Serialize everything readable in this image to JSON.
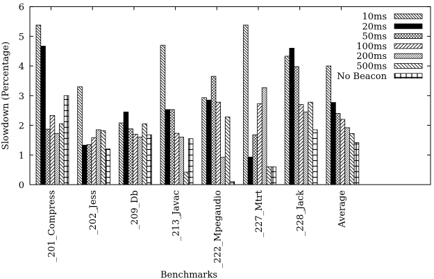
{
  "chart_data": {
    "type": "bar",
    "title": "",
    "xlabel": "Benchmarks",
    "ylabel": "Slowdown (Percentage)",
    "ylim": [
      0,
      6
    ],
    "yticks": [
      "0",
      "1",
      "2",
      "3",
      "4",
      "5",
      "6"
    ],
    "grid": false,
    "legend_position": "top-right",
    "categories": [
      "_201_Compress",
      "_202_Jess",
      "_209_Db",
      "_213_Javac",
      "_222_Mpegaudio",
      "_227_Mtrt",
      "_228_Jack",
      "Average"
    ],
    "series": [
      {
        "name": "10ms",
        "pattern": "diag-dense-down",
        "values": [
          5.38,
          3.3,
          2.08,
          4.7,
          2.93,
          5.38,
          4.33,
          4.0
        ]
      },
      {
        "name": "20ms",
        "pattern": "solid-black",
        "values": [
          4.67,
          1.33,
          2.45,
          2.53,
          2.85,
          0.93,
          4.6,
          2.77
        ]
      },
      {
        "name": "50ms",
        "pattern": "crosshatch",
        "values": [
          1.87,
          1.35,
          1.88,
          2.53,
          3.65,
          1.68,
          3.98,
          2.4
        ]
      },
      {
        "name": "100ms",
        "pattern": "diag-up",
        "values": [
          2.33,
          1.58,
          1.7,
          1.73,
          2.78,
          2.73,
          2.7,
          2.2
        ]
      },
      {
        "name": "200ms",
        "pattern": "diag-up-dense",
        "values": [
          1.72,
          1.85,
          1.6,
          1.6,
          0.92,
          3.27,
          2.45,
          1.92
        ]
      },
      {
        "name": "500ms",
        "pattern": "diag-down",
        "values": [
          2.05,
          1.82,
          2.05,
          0.42,
          2.28,
          0.6,
          2.78,
          1.72
        ]
      },
      {
        "name": "No Beacon",
        "pattern": "bricks",
        "values": [
          3.0,
          1.2,
          1.68,
          1.55,
          0.1,
          0.6,
          1.85,
          1.42
        ]
      }
    ]
  }
}
